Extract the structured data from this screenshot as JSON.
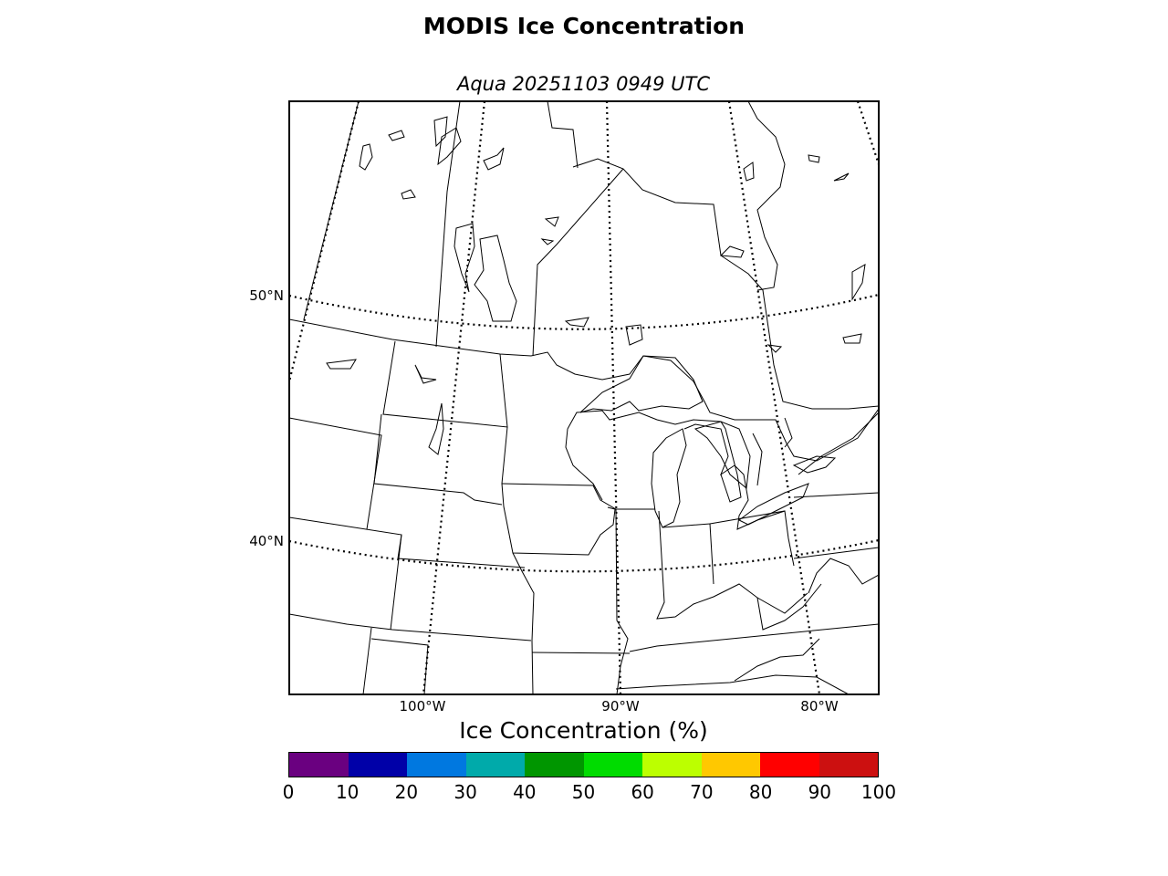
{
  "title": "MODIS Ice Concentration",
  "subtitle": "Aqua 20251103 0949 UTC",
  "map": {
    "lat_labels": [
      "50°N",
      "40°N"
    ],
    "lon_labels": [
      "100°W",
      "90°W",
      "80°W"
    ]
  },
  "colorbar": {
    "label": "Ice Concentration (%)",
    "ticks": [
      "0",
      "10",
      "20",
      "30",
      "40",
      "50",
      "60",
      "70",
      "80",
      "90",
      "100"
    ],
    "colors": [
      "#6a0080",
      "#0000a8",
      "#0078e0",
      "#00aaaa",
      "#009600",
      "#00dc00",
      "#bcff00",
      "#ffc800",
      "#ff0000",
      "#cc1010"
    ]
  }
}
